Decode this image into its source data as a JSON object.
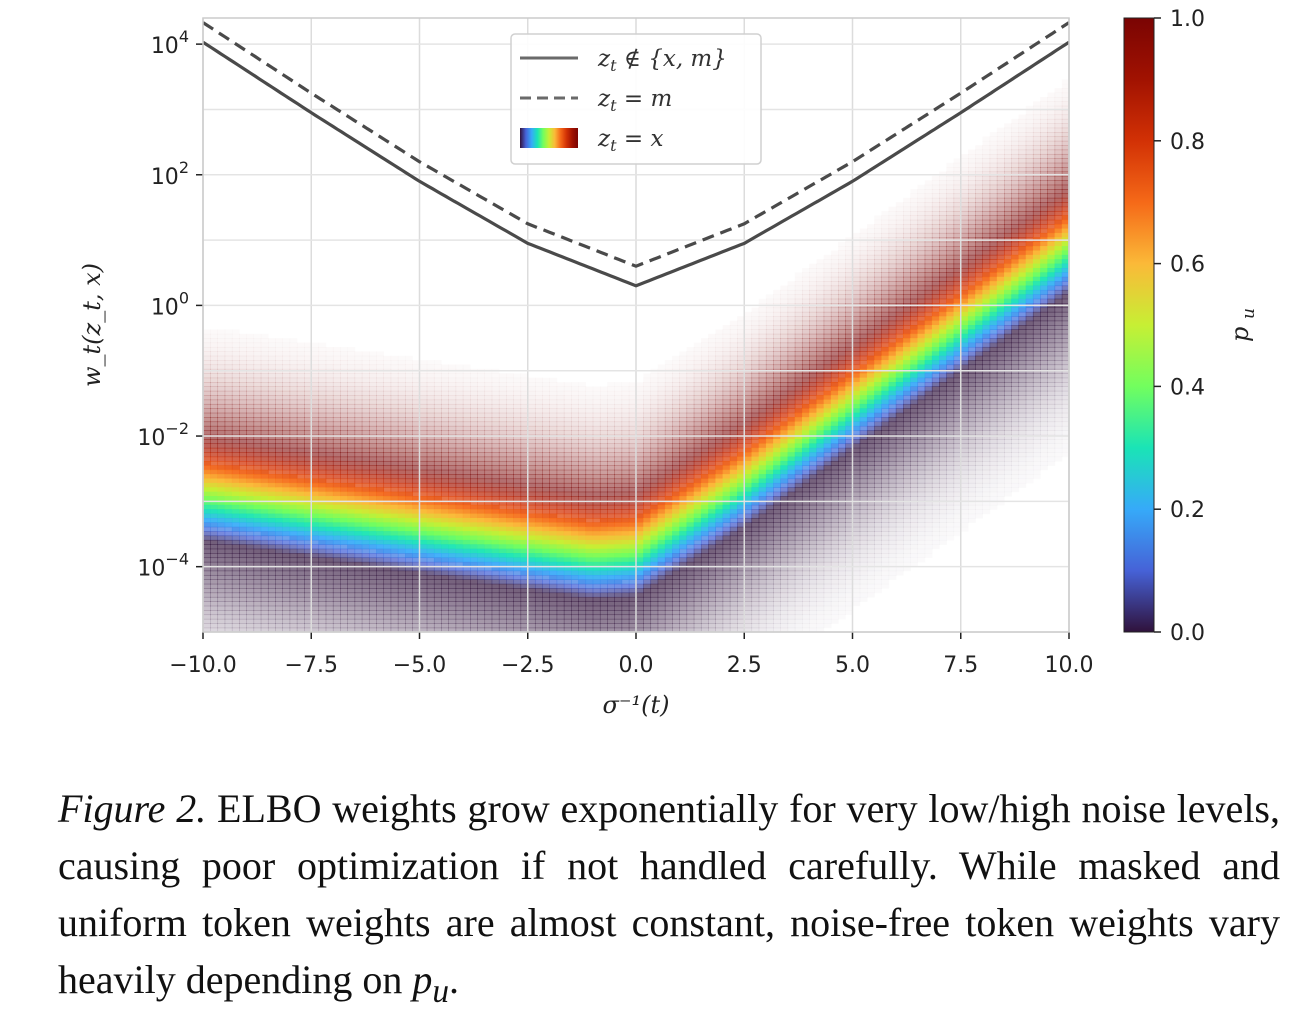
{
  "chart_data": {
    "type": "heatmap",
    "xlabel": "σ⁻¹(t)",
    "ylabel": "w_t(z_t, x)",
    "xlim": [
      -10,
      10
    ],
    "ylim_log10": [
      -5,
      4.4
    ],
    "y_scale": "log",
    "x_ticks": [
      {
        "v": -10,
        "label": "−10.0"
      },
      {
        "v": -7.5,
        "label": "−7.5"
      },
      {
        "v": -5,
        "label": "−5.0"
      },
      {
        "v": -2.5,
        "label": "−2.5"
      },
      {
        "v": 0,
        "label": "0.0"
      },
      {
        "v": 2.5,
        "label": "2.5"
      },
      {
        "v": 5,
        "label": "5.0"
      },
      {
        "v": 7.5,
        "label": "7.5"
      },
      {
        "v": 10,
        "label": "10.0"
      }
    ],
    "y_ticks": [
      {
        "v": 4,
        "base": "10",
        "exp": "4"
      },
      {
        "v": 2,
        "base": "10",
        "exp": "2"
      },
      {
        "v": 0,
        "base": "10",
        "exp": "0"
      },
      {
        "v": -2,
        "base": "10",
        "exp": "−2"
      },
      {
        "v": -4,
        "base": "10",
        "exp": "−4"
      }
    ],
    "grid": true,
    "legend_position": "top-center",
    "series": [
      {
        "name": "z_t ∉ {x, m}",
        "style": "solid",
        "color": "#4a4a4a",
        "points": [
          [
            -10,
            4.03
          ],
          [
            -7.5,
            2.95
          ],
          [
            -5,
            1.9
          ],
          [
            -2.5,
            0.95
          ],
          [
            0,
            0.3
          ],
          [
            2.5,
            0.95
          ],
          [
            5,
            1.9
          ],
          [
            7.5,
            2.95
          ],
          [
            10,
            4.03
          ]
        ]
      },
      {
        "name": "z_t = m",
        "style": "dashed",
        "color": "#4a4a4a",
        "points": [
          [
            -10,
            4.33
          ],
          [
            -7.5,
            3.25
          ],
          [
            -5,
            2.2
          ],
          [
            -2.5,
            1.25
          ],
          [
            0,
            0.6
          ],
          [
            2.5,
            1.25
          ],
          [
            5,
            2.2
          ],
          [
            7.5,
            3.25
          ],
          [
            10,
            4.33
          ]
        ]
      },
      {
        "name": "z_t = x",
        "style": "rainbow-band",
        "description": "log10 weight as a function of x and p_u, shown as colored band",
        "center_curve": [
          [
            -10,
            -2.8
          ],
          [
            -7.5,
            -3.05
          ],
          [
            -5,
            -3.3
          ],
          [
            -2.5,
            -3.55
          ],
          [
            -1,
            -3.7
          ],
          [
            0,
            -3.65
          ],
          [
            2.5,
            -2.6
          ],
          [
            5,
            -1.4
          ],
          [
            7.5,
            -0.2
          ],
          [
            10,
            1.0
          ]
        ]
      }
    ],
    "colorbar": {
      "label": "p_u",
      "range": [
        0,
        1
      ],
      "ticks": [
        {
          "v": 0,
          "label": "0.0"
        },
        {
          "v": 0.2,
          "label": "0.2"
        },
        {
          "v": 0.4,
          "label": "0.4"
        },
        {
          "v": 0.6,
          "label": "0.6"
        },
        {
          "v": 0.8,
          "label": "0.8"
        },
        {
          "v": 1,
          "label": "1.0"
        }
      ],
      "colormap": "turbo"
    }
  },
  "legend": {
    "items": [
      {
        "label_main": "z",
        "label_sub": "t",
        "label_rest": " ∉ {x, m}",
        "style": "solid"
      },
      {
        "label_main": "z",
        "label_sub": "t",
        "label_rest": " = m",
        "style": "dashed"
      },
      {
        "label_main": "z",
        "label_sub": "t",
        "label_rest": " = x",
        "style": "rainbow"
      }
    ]
  },
  "caption": {
    "label": "Figure 2.",
    "text": " ELBO weights grow exponentially for very low/high noise levels, causing poor optimization if not handled carefully. While masked and uniform token weights are almost constant, noise-free token weights vary heavily depending on ",
    "math": "p",
    "math_sub": "u",
    "end": "."
  }
}
